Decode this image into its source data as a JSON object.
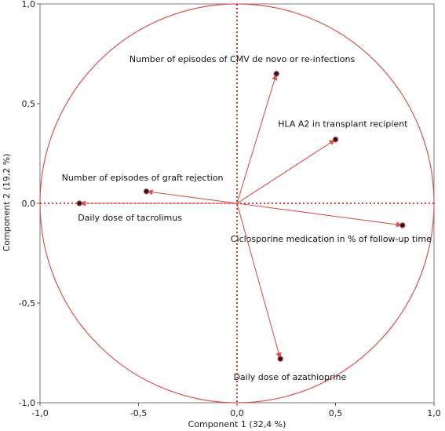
{
  "chart_data": {
    "type": "scatter",
    "title": "",
    "xlabel": "Component 1  (32,4 %)",
    "ylabel": "Component 2  (19,2 %)",
    "xlim": [
      -1.0,
      1.0
    ],
    "ylim": [
      -1.0,
      1.0
    ],
    "x_ticks": [
      "-1,0",
      "-0,5",
      "0,0",
      "0,5",
      "1,0"
    ],
    "y_ticks": [
      "1,0",
      "0,5",
      "0,0",
      "-0,5",
      "-1,0"
    ],
    "grid": false,
    "circle": "unit correlation circle",
    "vectors": [
      {
        "label": "Number of episodes of CMV de novo or re-infections",
        "x": 0.2,
        "y": 0.65
      },
      {
        "label": "HLA A2 in transplant recipient",
        "x": 0.5,
        "y": 0.32
      },
      {
        "label": "Number of episodes of graft rejection",
        "x": -0.46,
        "y": 0.06
      },
      {
        "label": "Daily dose of tacrolimus",
        "x": -0.8,
        "y": 0.0
      },
      {
        "label": "Ciclosporine medication in % of follow-up time",
        "x": 0.84,
        "y": -0.11
      },
      {
        "label": "Daily dose of azathioprine",
        "x": 0.22,
        "y": -0.78
      }
    ],
    "colors": {
      "circle": "#d9534f",
      "arrow": "#d9534f",
      "reference": "#cc0000",
      "point": "#1a1a1a"
    }
  }
}
